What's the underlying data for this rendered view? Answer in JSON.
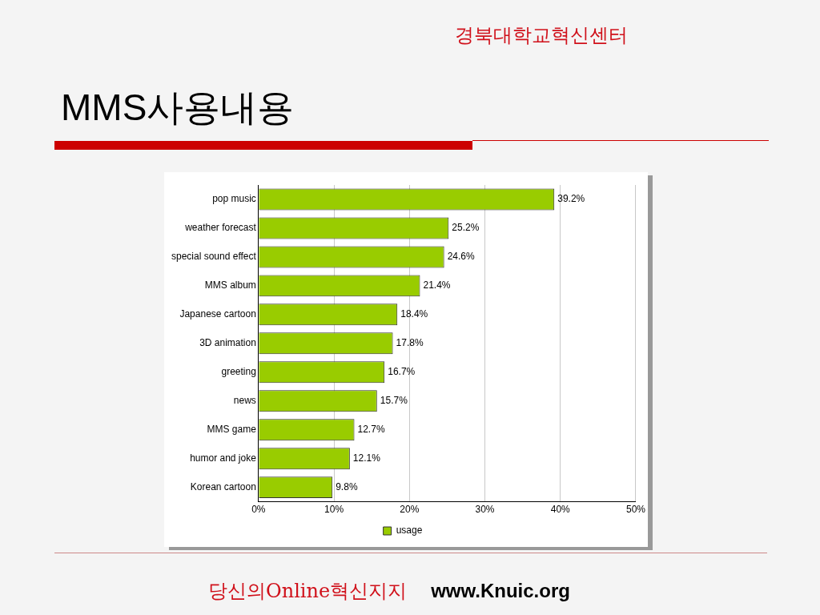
{
  "chart_data": {
    "type": "bar",
    "orientation": "horizontal",
    "title": "MMS사용내용",
    "annotations": [
      "경북대학교혁신센터",
      "당신의Online혁신지지",
      "www.Knuic.org"
    ],
    "categories": [
      "pop music",
      "weather forecast",
      "special sound effect",
      "MMS album",
      "Japanese cartoon",
      "3D animation",
      "greeting",
      "news",
      "MMS game",
      "humor and joke",
      "Korean cartoon"
    ],
    "series": [
      {
        "name": "usage",
        "color": "#99cc00",
        "values": [
          39.2,
          25.2,
          24.6,
          21.4,
          18.4,
          17.8,
          16.7,
          15.7,
          12.7,
          12.1,
          9.8
        ],
        "value_labels": [
          "39.2%",
          "25.2%",
          "24.6%",
          "21.4%",
          "18.4%",
          "17.8%",
          "16.7%",
          "15.7%",
          "12.7%",
          "12.1%",
          "9.8%"
        ]
      }
    ],
    "xlim": [
      0,
      50
    ],
    "xticks": [
      {
        "value": 0,
        "label": "0%"
      },
      {
        "value": 10,
        "label": "10%"
      },
      {
        "value": 20,
        "label": "20%"
      },
      {
        "value": 30,
        "label": "30%"
      },
      {
        "value": 40,
        "label": "40%"
      },
      {
        "value": 50,
        "label": "50%"
      }
    ],
    "grid": "x",
    "legend": "bottom"
  }
}
